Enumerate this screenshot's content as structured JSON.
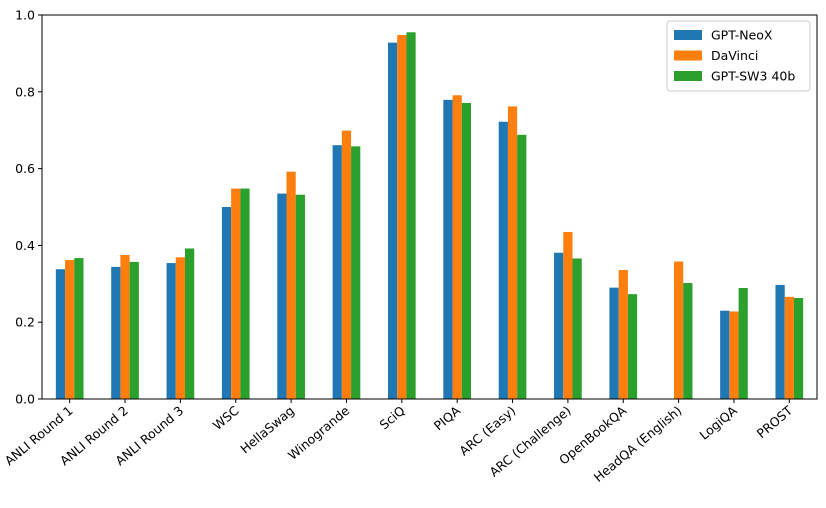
{
  "chart_data": {
    "type": "bar",
    "title": "",
    "xlabel": "",
    "ylabel": "",
    "ylim": [
      0,
      1.0
    ],
    "yticks": [
      "0.0",
      "0.2",
      "0.4",
      "0.6",
      "0.8",
      "1.0"
    ],
    "grid": false,
    "legend_position": "top-right",
    "categories": [
      "ANLI Round 1",
      "ANLI Round 2",
      "ANLI Round 3",
      "WSC",
      "HellaSwag",
      "Winogrande",
      "SciQ",
      "PIQA",
      "ARC (Easy)",
      "ARC (Challenge)",
      "OpenBookQA",
      "HeadQA (English)",
      "LogiQA",
      "PROST"
    ],
    "series": [
      {
        "name": "GPT-NeoX",
        "color": "#1f77b4",
        "values": [
          0.338,
          0.344,
          0.354,
          0.5,
          0.535,
          0.661,
          0.928,
          0.779,
          0.722,
          0.381,
          0.29,
          null,
          0.23,
          0.297
        ]
      },
      {
        "name": "DaVinci",
        "color": "#ff7f0e",
        "values": [
          0.362,
          0.375,
          0.369,
          0.548,
          0.592,
          0.699,
          0.948,
          0.791,
          0.762,
          0.435,
          0.336,
          0.358,
          0.228,
          0.266
        ]
      },
      {
        "name": "GPT-SW3 40b",
        "color": "#2ca02c",
        "values": [
          0.367,
          0.357,
          0.392,
          0.548,
          0.532,
          0.658,
          0.955,
          0.771,
          0.688,
          0.366,
          0.273,
          0.302,
          0.289,
          0.263
        ]
      }
    ]
  }
}
